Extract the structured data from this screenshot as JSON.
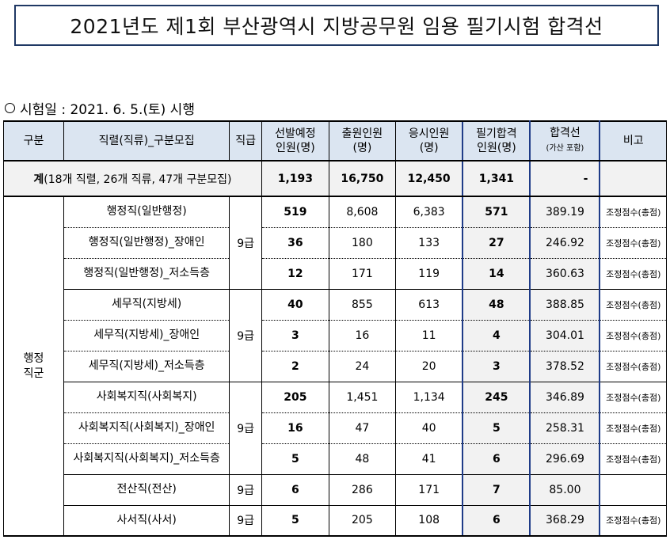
{
  "title": "2021년도 제1회 부산광역시 지방공무원 임용 필기시험 합격선",
  "exam_date": "시험일 : 2021. 6. 5.(토) 시행",
  "headers": {
    "category": "구분",
    "job": "직렬(직류)_구분모집",
    "grade": "직급",
    "planned_1": "선발예정",
    "planned_2": "인원(명)",
    "applicants_1": "출원인원",
    "applicants_2": "(명)",
    "takers_1": "응시인원",
    "takers_2": "(명)",
    "passed_1": "필기합격",
    "passed_2": "인원(명)",
    "cutoff_1": "합격선",
    "cutoff_2": "(가산 포함)",
    "remark": "비고"
  },
  "total": {
    "label_bold": "계",
    "label_rest": "(18개 직렬, 26개 직류, 47개 구분모집)",
    "planned": "1,193",
    "applicants": "16,750",
    "takers": "12,450",
    "passed": "1,341",
    "cutoff": "-"
  },
  "group": {
    "line1": "행정",
    "line2": "직군"
  },
  "grade_label": "9급",
  "rows": [
    {
      "job": "행정직(일반행정)",
      "planned": "519",
      "applicants": "8,608",
      "takers": "6,383",
      "passed": "571",
      "cutoff": "389.19",
      "remark": "조정점수(총점)"
    },
    {
      "job": "행정직(일반행정)_장애인",
      "planned": "36",
      "applicants": "180",
      "takers": "133",
      "passed": "27",
      "cutoff": "246.92",
      "remark": "조정점수(총점)"
    },
    {
      "job": "행정직(일반행정)_저소득층",
      "planned": "12",
      "applicants": "171",
      "takers": "119",
      "passed": "14",
      "cutoff": "360.63",
      "remark": "조정점수(총점)"
    },
    {
      "job": "세무직(지방세)",
      "planned": "40",
      "applicants": "855",
      "takers": "613",
      "passed": "48",
      "cutoff": "388.85",
      "remark": "조정점수(총점)"
    },
    {
      "job": "세무직(지방세)_장애인",
      "planned": "3",
      "applicants": "16",
      "takers": "11",
      "passed": "4",
      "cutoff": "304.01",
      "remark": "조정점수(총점)"
    },
    {
      "job": "세무직(지방세)_저소득층",
      "planned": "2",
      "applicants": "24",
      "takers": "20",
      "passed": "3",
      "cutoff": "378.52",
      "remark": "조정점수(총점)"
    },
    {
      "job": "사회복지직(사회복지)",
      "planned": "205",
      "applicants": "1,451",
      "takers": "1,134",
      "passed": "245",
      "cutoff": "346.89",
      "remark": "조정점수(총점)"
    },
    {
      "job": "사회복지직(사회복지)_장애인",
      "planned": "16",
      "applicants": "47",
      "takers": "40",
      "passed": "5",
      "cutoff": "258.31",
      "remark": "조정점수(총점)"
    },
    {
      "job": "사회복지직(사회복지)_저소득층",
      "planned": "5",
      "applicants": "48",
      "takers": "41",
      "passed": "6",
      "cutoff": "296.69",
      "remark": "조정점수(총점)"
    },
    {
      "job": "전산직(전산)",
      "planned": "6",
      "applicants": "286",
      "takers": "171",
      "passed": "7",
      "cutoff": "85.00",
      "remark": ""
    },
    {
      "job": "사서직(사서)",
      "planned": "5",
      "applicants": "205",
      "takers": "108",
      "passed": "6",
      "cutoff": "368.29",
      "remark": "조정점수(총점)"
    }
  ]
}
